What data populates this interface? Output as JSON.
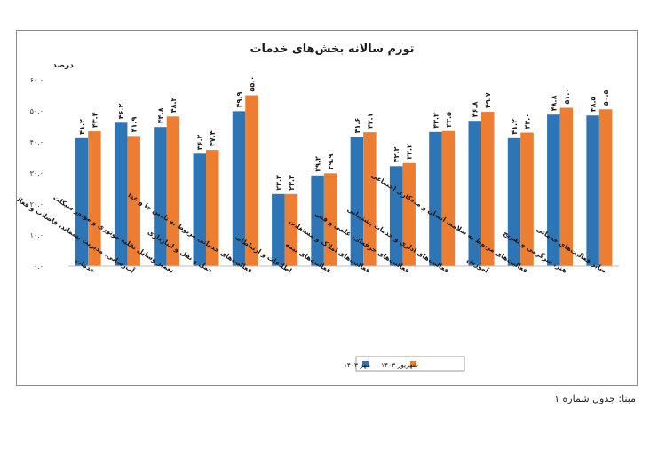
{
  "chart_data": {
    "type": "bar",
    "title": "تورم سالانه بخش‌های خدمات",
    "ylabel": "درصد",
    "ylim": [
      0,
      60
    ],
    "yticks": [
      0,
      10,
      20,
      30,
      40,
      50,
      60
    ],
    "ytick_labels": [
      "۰.۰",
      "۱۰.۰",
      "۲۰.۰",
      "۳۰.۰",
      "۴۰.۰",
      "۵۰.۰",
      "۶۰.۰"
    ],
    "grid": false,
    "legend_position": "bottom",
    "categories": [
      "خدمات",
      "آب‌رسانی، مدیریت پسماند، فاضلاب و فعالیت‌های تصفیه",
      "تعمیر وسایل نقلیه موتوری و موتور سیکلت",
      "حمل و نقل و انبارداری",
      "فعالیت‌های خدماتی مربوط به تامین جا و غذا",
      "اطلاعات و ارتباطات",
      "فعالیت‌های بیمه",
      "فعالیت‌های املاک و مستغلات",
      "فعالیت‌های حرفه‌ای، علمی و فنی",
      "فعالیت‌های اداری و خدمات پشتیبانی",
      "آموزش",
      "فعالیت‌های مربوط به سلامت انسان و مددکاری اجتماعی",
      "هنر، سرگرمی و تفریح",
      "سایر فعالیت‌های خدماتی"
    ],
    "series": [
      {
        "name": "مهر ۱۴۰۳",
        "color": "#2e75b6",
        "values": [
          41.2,
          46.2,
          44.8,
          36.2,
          49.9,
          23.2,
          29.2,
          41.6,
          32.2,
          43.2,
          46.8,
          41.2,
          48.8,
          48.5
        ],
        "labels": [
          "۴۱.۲",
          "۴۶.۲",
          "۴۴.۸",
          "۳۶.۲",
          "۴۹.۹",
          "۲۳.۲",
          "۲۹.۲",
          "۴۱.۶",
          "۳۲.۲",
          "۴۳.۲",
          "۴۶.۸",
          "۴۱.۲",
          "۴۸.۸",
          "۴۸.۵"
        ]
      },
      {
        "name": "شهریور ۱۴۰۳",
        "color": "#ed7d31",
        "values": [
          43.4,
          41.9,
          48.2,
          37.4,
          55.0,
          23.2,
          29.9,
          43.1,
          33.2,
          43.5,
          49.7,
          43.0,
          51.0,
          50.5
        ],
        "labels": [
          "۴۳.۴",
          "۴۱.۹",
          "۴۸.۲",
          "۳۷.۴",
          "۵۵.۰",
          "۲۳.۲",
          "۲۹.۹",
          "۴۳.۱",
          "۳۳.۲",
          "۴۳.۵",
          "۴۹.۷",
          "۴۳.۰",
          "۵۱.۰",
          "۵۰.۵"
        ]
      }
    ]
  },
  "footer": {
    "source": "مبنا: جدول شماره ۱"
  }
}
